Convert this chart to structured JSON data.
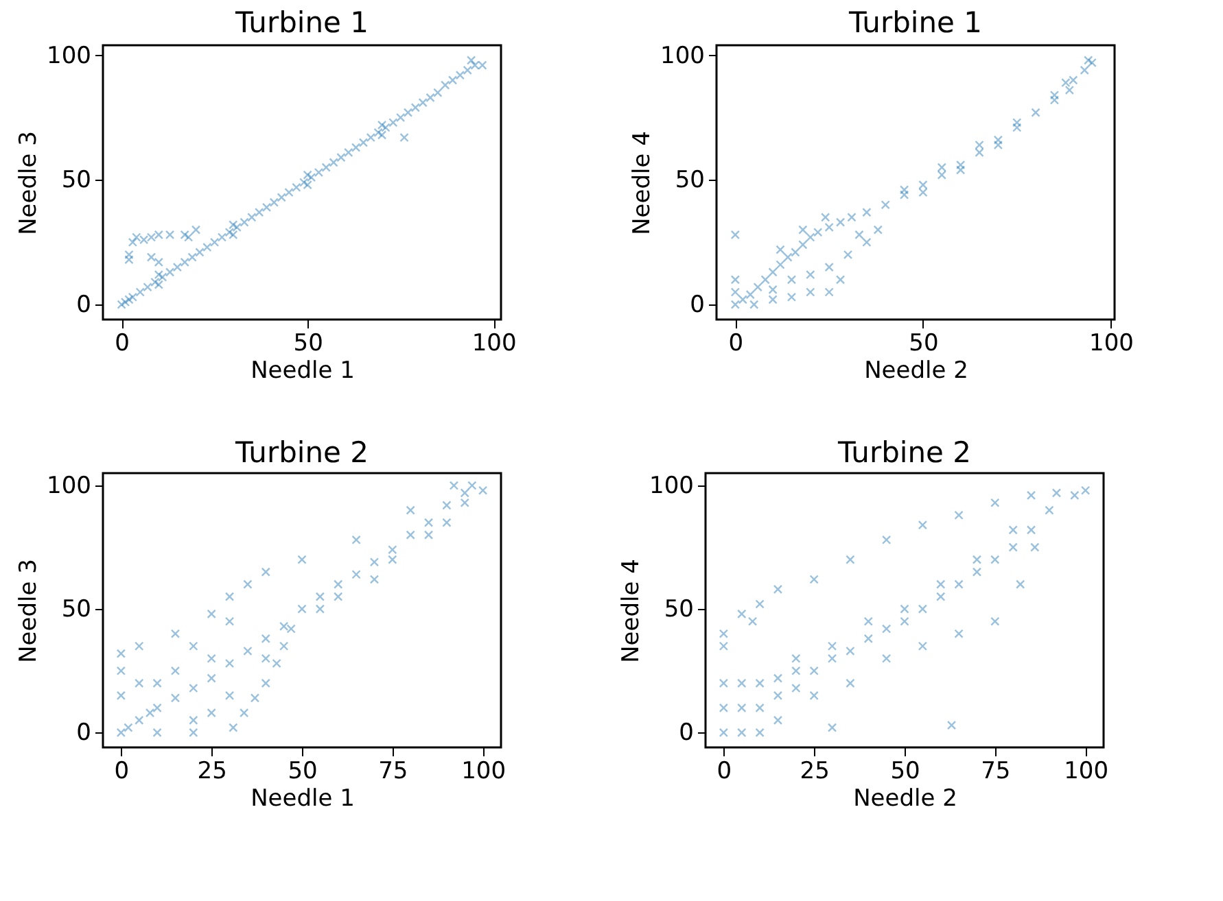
{
  "chart_data": [
    {
      "type": "scatter",
      "title": "Turbine 1",
      "xlabel": "Needle 1",
      "ylabel": "Needle 3",
      "color": "#1f77b4",
      "marker": "cross",
      "grid": false,
      "xlim": [
        -5,
        102
      ],
      "ylim": [
        -6,
        104
      ],
      "xticks": [
        0,
        50,
        100
      ],
      "yticks": [
        0,
        50,
        100
      ],
      "x": [
        0,
        1,
        2,
        3,
        5,
        7,
        9,
        11,
        13,
        15,
        17,
        19,
        21,
        23,
        25,
        27,
        29,
        31,
        33,
        35,
        37,
        39,
        41,
        43,
        45,
        47,
        49,
        51,
        53,
        55,
        57,
        59,
        61,
        63,
        65,
        67,
        69,
        71,
        73,
        75,
        77,
        79,
        81,
        83,
        85,
        87,
        89,
        91,
        93,
        95,
        97,
        94,
        10,
        10,
        30,
        30,
        50,
        50,
        70,
        70,
        76,
        3,
        4,
        6,
        8,
        10,
        13,
        17,
        18,
        2,
        2,
        20,
        8,
        10
      ],
      "values": [
        0,
        1,
        2,
        3,
        5,
        7,
        9,
        11,
        13,
        15,
        17,
        19,
        21,
        23,
        25,
        27,
        29,
        31,
        33,
        35,
        37,
        39,
        41,
        43,
        45,
        47,
        49,
        51,
        53,
        55,
        57,
        59,
        61,
        63,
        65,
        67,
        69,
        71,
        73,
        75,
        77,
        79,
        81,
        83,
        85,
        88,
        90,
        92,
        94,
        96,
        96,
        98,
        8,
        12,
        28,
        32,
        48,
        52,
        68,
        72,
        67,
        25,
        27,
        26,
        27,
        28,
        28,
        28,
        27,
        18,
        20,
        30,
        19,
        17
      ]
    },
    {
      "type": "scatter",
      "title": "Turbine 1",
      "xlabel": "Needle 2",
      "ylabel": "Needle 4",
      "color": "#1f77b4",
      "marker": "cross",
      "grid": false,
      "xlim": [
        -5,
        101
      ],
      "ylim": [
        -6,
        104
      ],
      "xticks": [
        0,
        50,
        100
      ],
      "yticks": [
        0,
        50,
        100
      ],
      "x": [
        0,
        2,
        4,
        6,
        8,
        10,
        12,
        14,
        16,
        18,
        20,
        22,
        25,
        28,
        31,
        35,
        40,
        45,
        50,
        55,
        60,
        65,
        70,
        75,
        80,
        85,
        85,
        5,
        10,
        15,
        20,
        25,
        20,
        25,
        28,
        30,
        35,
        38,
        33,
        15,
        10,
        0,
        0,
        12,
        18,
        24,
        0,
        88,
        90,
        93,
        95,
        94,
        89,
        50,
        60,
        70,
        45,
        55,
        65,
        75
      ],
      "values": [
        0,
        2,
        4,
        7,
        10,
        13,
        16,
        19,
        21,
        24,
        27,
        29,
        31,
        33,
        35,
        37,
        40,
        44,
        48,
        52,
        56,
        61,
        66,
        71,
        77,
        82,
        84,
        0,
        2,
        3,
        5,
        5,
        12,
        15,
        10,
        20,
        25,
        30,
        28,
        10,
        6,
        5,
        10,
        22,
        30,
        35,
        28,
        89,
        90,
        94,
        97,
        98,
        86,
        45,
        54,
        64,
        46,
        55,
        64,
        73
      ]
    },
    {
      "type": "scatter",
      "title": "Turbine 2",
      "xlabel": "Needle 1",
      "ylabel": "Needle 3",
      "color": "#1f77b4",
      "marker": "cross",
      "grid": false,
      "xlim": [
        -5,
        105
      ],
      "ylim": [
        -6,
        105
      ],
      "xticks": [
        0,
        25,
        50,
        75,
        100
      ],
      "yticks": [
        0,
        50,
        100
      ],
      "x": [
        0,
        2,
        5,
        8,
        10,
        15,
        20,
        25,
        30,
        35,
        40,
        45,
        50,
        55,
        60,
        65,
        70,
        75,
        80,
        85,
        90,
        95,
        100,
        92,
        97,
        0,
        5,
        15,
        25,
        30,
        35,
        40,
        50,
        65,
        80,
        10,
        20,
        40,
        55,
        70,
        90,
        0,
        0,
        5,
        15,
        20,
        30,
        31,
        34,
        37,
        40,
        43,
        45,
        47,
        20,
        25,
        30,
        60,
        75,
        85,
        95,
        10,
        25
      ],
      "values": [
        0,
        2,
        5,
        8,
        10,
        14,
        18,
        22,
        28,
        33,
        38,
        43,
        50,
        55,
        60,
        64,
        69,
        74,
        80,
        85,
        92,
        97,
        98,
        100,
        100,
        32,
        35,
        40,
        48,
        55,
        60,
        65,
        70,
        78,
        90,
        0,
        0,
        30,
        50,
        62,
        85,
        15,
        25,
        20,
        25,
        35,
        45,
        2,
        8,
        14,
        20,
        28,
        35,
        42,
        5,
        8,
        15,
        55,
        70,
        80,
        93,
        20,
        30
      ]
    },
    {
      "type": "scatter",
      "title": "Turbine 2",
      "xlabel": "Needle 2",
      "ylabel": "Needle 4",
      "color": "#1f77b4",
      "marker": "cross",
      "grid": false,
      "xlim": [
        -5,
        105
      ],
      "ylim": [
        -6,
        105
      ],
      "xticks": [
        0,
        25,
        50,
        75,
        100
      ],
      "yticks": [
        0,
        50,
        100
      ],
      "x": [
        0,
        0,
        0,
        5,
        5,
        5,
        10,
        10,
        10,
        15,
        15,
        15,
        20,
        20,
        25,
        30,
        35,
        40,
        45,
        50,
        55,
        60,
        65,
        70,
        75,
        80,
        85,
        90,
        92,
        97,
        100,
        50,
        60,
        70,
        80,
        40,
        30,
        20,
        25,
        35,
        45,
        55,
        65,
        75,
        82,
        86,
        0,
        0,
        5,
        10,
        15,
        25,
        35,
        45,
        55,
        65,
        75,
        85,
        63,
        30,
        8
      ],
      "values": [
        0,
        10,
        20,
        0,
        10,
        20,
        0,
        10,
        20,
        5,
        15,
        22,
        18,
        25,
        25,
        30,
        33,
        38,
        42,
        45,
        50,
        55,
        60,
        65,
        70,
        75,
        82,
        90,
        97,
        96,
        98,
        50,
        60,
        70,
        82,
        45,
        35,
        30,
        15,
        20,
        30,
        35,
        40,
        45,
        60,
        75,
        40,
        35,
        48,
        52,
        58,
        62,
        70,
        78,
        84,
        88,
        93,
        96,
        3,
        2,
        45
      ]
    }
  ]
}
